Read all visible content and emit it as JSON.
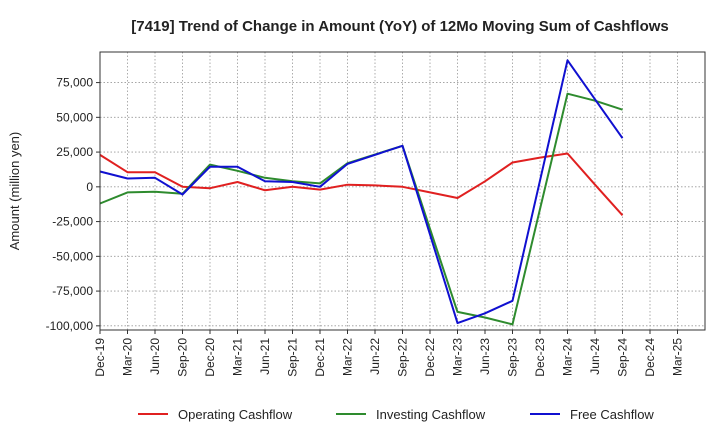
{
  "chart_data": {
    "type": "line",
    "title": "[7419]  Trend of Change in Amount (YoY) of 12Mo Moving Sum of Cashflows",
    "xlabel": "",
    "ylabel": "Amount (million yen)",
    "ylim": [
      -103000,
      97000
    ],
    "yticks": [
      75000,
      50000,
      25000,
      0,
      -25000,
      -50000,
      -75000,
      -100000
    ],
    "ytick_labels": [
      "75,000",
      "50,000",
      "25,000",
      "0",
      "-25,000",
      "-50,000",
      "-75,000",
      "-100,000"
    ],
    "categories": [
      "Dec-19",
      "Mar-20",
      "Jun-20",
      "Sep-20",
      "Dec-20",
      "Mar-21",
      "Jun-21",
      "Sep-21",
      "Dec-21",
      "Mar-22",
      "Jun-22",
      "Sep-22",
      "Dec-22",
      "Mar-23",
      "Jun-23",
      "Sep-23",
      "Dec-23",
      "Mar-24",
      "Jun-24",
      "Sep-24",
      "Dec-24",
      "Mar-25"
    ],
    "series": [
      {
        "name": "Operating Cashflow",
        "color": "#e02020",
        "values": [
          23000,
          10500,
          10500,
          0,
          -1000,
          3500,
          -2500,
          0,
          -2000,
          1500,
          1000,
          0,
          -4000,
          -8000,
          4000,
          17500,
          21000,
          24000,
          1500,
          -20500,
          null,
          null
        ]
      },
      {
        "name": "Investing Cashflow",
        "color": "#2e8b2e",
        "values": [
          -12000,
          -4000,
          -3500,
          -5000,
          16000,
          11500,
          6500,
          4000,
          2500,
          17000,
          null,
          29500,
          null,
          -90000,
          -94000,
          -99000,
          null,
          67000,
          62000,
          55500,
          null,
          null
        ]
      },
      {
        "name": "Free Cashflow",
        "color": "#1010d0",
        "values": [
          11000,
          6000,
          6500,
          -5500,
          14500,
          14500,
          4000,
          3500,
          0,
          16500,
          null,
          29500,
          null,
          -98000,
          -91000,
          -82000,
          null,
          91000,
          63000,
          35000,
          null,
          null
        ]
      }
    ],
    "legend_position": "bottom",
    "grid": true
  }
}
